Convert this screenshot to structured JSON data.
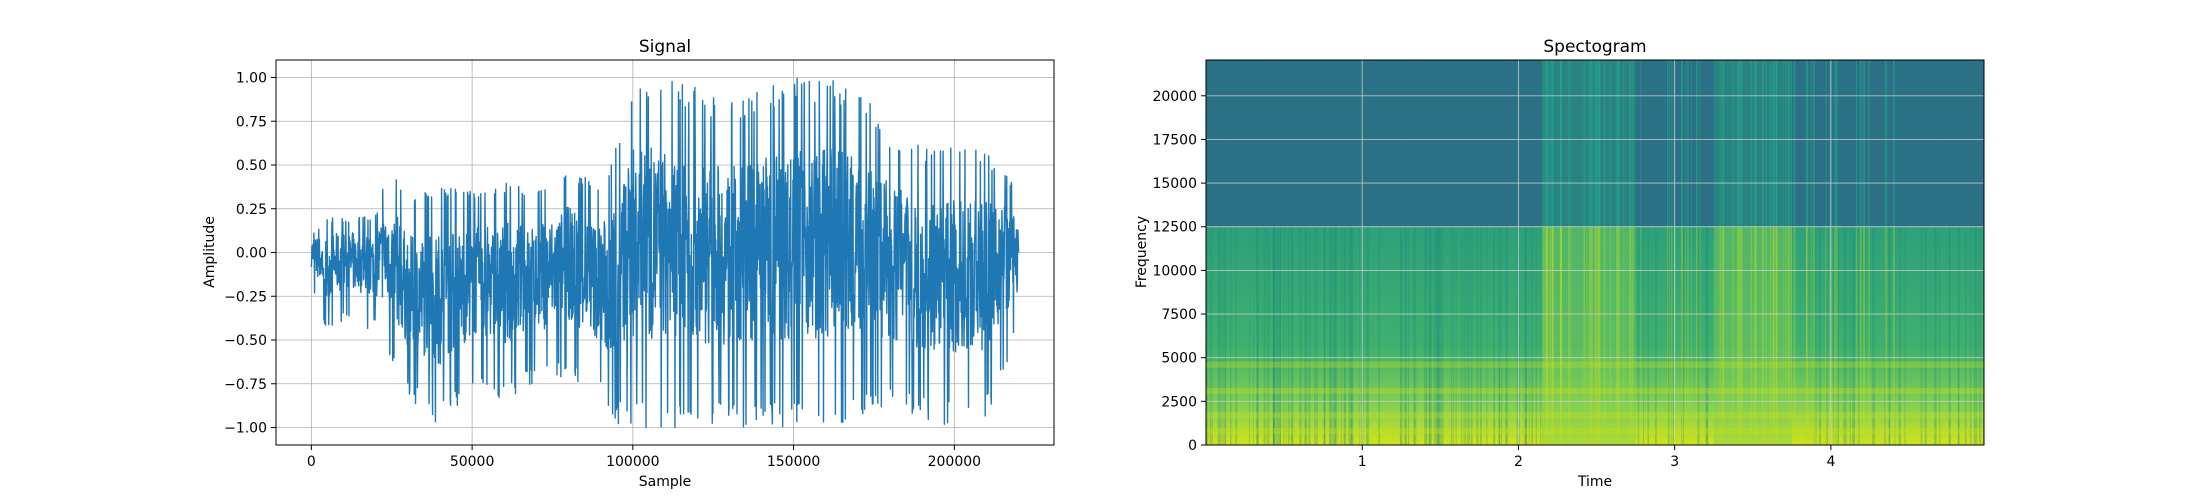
{
  "chart_data": [
    {
      "type": "line",
      "title": "Signal",
      "xlabel": "Sample",
      "ylabel": "Amplitude",
      "xlim": [
        -11000,
        231000
      ],
      "ylim": [
        -1.1,
        1.1
      ],
      "xticks": [
        0,
        50000,
        100000,
        150000,
        200000
      ],
      "xtick_labels": [
        "0",
        "50000",
        "100000",
        "150000",
        "200000"
      ],
      "yticks": [
        -1.0,
        -0.75,
        -0.5,
        -0.25,
        0.0,
        0.25,
        0.5,
        0.75,
        1.0
      ],
      "ytick_labels": [
        "−1.00",
        "−0.75",
        "−0.50",
        "−0.25",
        "0.00",
        "0.25",
        "0.50",
        "0.75",
        "1.00"
      ],
      "grid": true,
      "color": "#1f77b4",
      "series": [
        {
          "x": [
            0,
            5000,
            10000,
            20000,
            24000,
            30000,
            40000,
            50000,
            60000,
            70000,
            80000,
            90000,
            92000,
            94000,
            100000,
            105000,
            110000,
            120000,
            130000,
            140000,
            150000,
            155000,
            160000,
            170000,
            180000,
            190000,
            200000,
            210000,
            220000
          ],
          "upper": [
            0.1,
            0.2,
            0.2,
            0.22,
            0.52,
            0.3,
            0.38,
            0.35,
            0.4,
            0.35,
            0.48,
            0.4,
            0.5,
            0.55,
            1.0,
            1.0,
            1.0,
            0.95,
            0.85,
            0.95,
            1.0,
            1.0,
            1.0,
            0.95,
            0.7,
            0.6,
            0.62,
            0.58,
            0.4
          ],
          "lower": [
            -0.2,
            -0.45,
            -0.4,
            -0.45,
            -0.6,
            -0.85,
            -1.0,
            -0.8,
            -0.85,
            -0.75,
            -0.7,
            -0.85,
            -1.0,
            -1.0,
            -1.0,
            -1.0,
            -1.0,
            -1.0,
            -1.0,
            -1.0,
            -1.0,
            -1.0,
            -1.0,
            -0.95,
            -0.9,
            -0.95,
            -1.0,
            -0.95,
            -0.45
          ]
        }
      ]
    },
    {
      "type": "heatmap",
      "title": "Spectogram",
      "xlabel": "Time",
      "ylabel": "Frequency",
      "xlim": [
        0,
        4.98
      ],
      "ylim": [
        0,
        22050
      ],
      "xticks": [
        1,
        2,
        3,
        4
      ],
      "xtick_labels": [
        "1",
        "2",
        "3",
        "4"
      ],
      "yticks": [
        0,
        2500,
        5000,
        7500,
        10000,
        12500,
        15000,
        17500,
        20000
      ],
      "ytick_labels": [
        "0",
        "2500",
        "5000",
        "7500",
        "10000",
        "12500",
        "15000",
        "17500",
        "20000"
      ],
      "grid": true,
      "colormap": "viridis",
      "frequency_cutoff": 12500,
      "loud_segments_time": [
        [
          2.15,
          2.75
        ],
        [
          3.25,
          3.75
        ]
      ],
      "colors": {
        "high_band": "#2b7185",
        "high_band_active": "#2a8a80",
        "mid_band": "#2ea07a",
        "low_band": "#7fcf55",
        "bottom": "#d2e21b"
      }
    }
  ]
}
